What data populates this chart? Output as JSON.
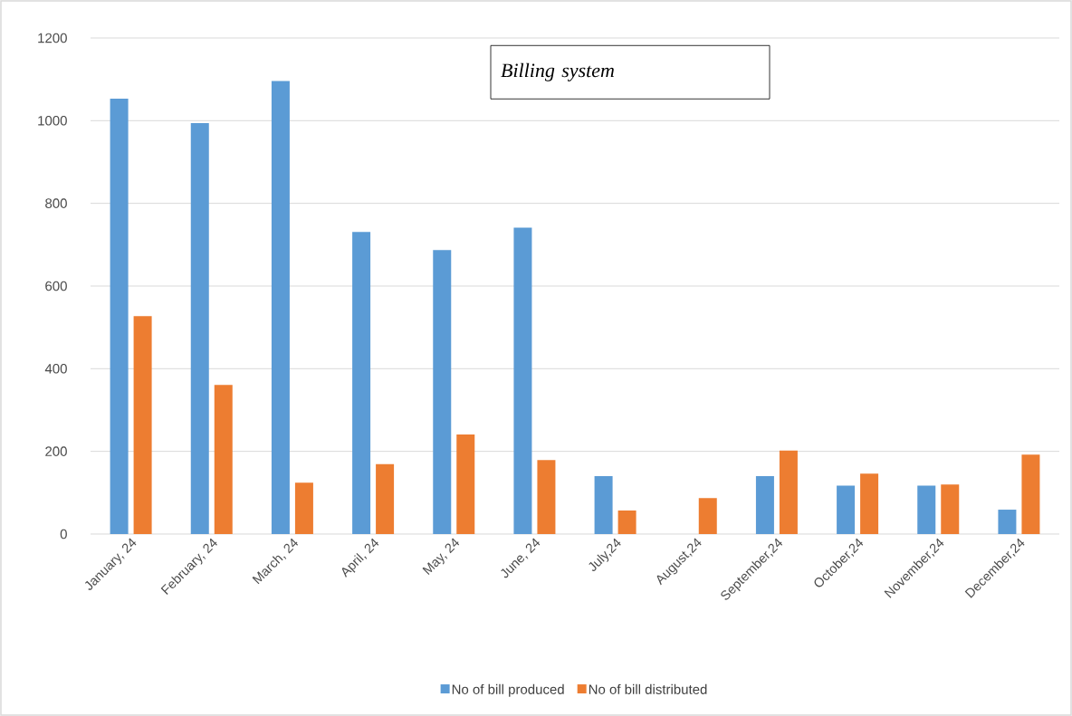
{
  "chart_data": {
    "type": "bar",
    "title": "Billing system",
    "categories": [
      "January, 24",
      "February, 24",
      "March, 24",
      "April, 24",
      "May, 24",
      "June, 24",
      "July,24",
      "August,24",
      "September,24",
      "October,24",
      "November,24",
      "December,24"
    ],
    "series": [
      {
        "name": "No of bill produced",
        "color": "#5b9bd5",
        "values": [
          1053,
          994,
          1096,
          731,
          687,
          741,
          140,
          0,
          140,
          117,
          117,
          59
        ]
      },
      {
        "name": "No of bill distributed",
        "color": "#ed7d31",
        "values": [
          527,
          361,
          124,
          169,
          241,
          179,
          57,
          87,
          202,
          146,
          120,
          192
        ]
      }
    ],
    "ylim": [
      0,
      1200
    ],
    "yticks": [
      0,
      200,
      400,
      600,
      800,
      1000,
      1200
    ],
    "grid": "y",
    "legend": "bottom"
  }
}
